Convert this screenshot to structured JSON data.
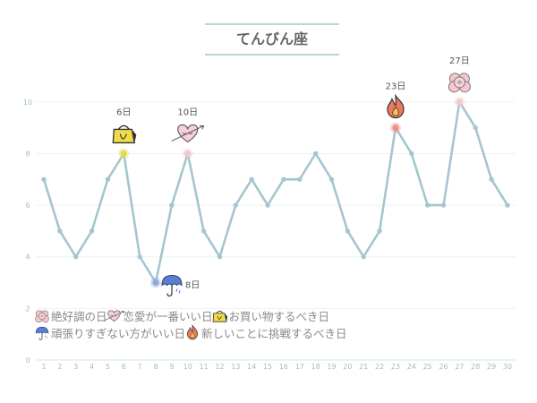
{
  "chart_data": {
    "type": "line",
    "title": "てんびん座",
    "x": [
      1,
      2,
      3,
      4,
      5,
      6,
      7,
      8,
      9,
      10,
      11,
      12,
      13,
      14,
      15,
      16,
      17,
      18,
      19,
      20,
      21,
      22,
      23,
      24,
      25,
      26,
      27,
      28,
      29,
      30
    ],
    "y": [
      7,
      5,
      4,
      5,
      7,
      8,
      4,
      3,
      6,
      8,
      5,
      4,
      6,
      7,
      6,
      7,
      7,
      8,
      7,
      5,
      4,
      5,
      9,
      8,
      6,
      6,
      10,
      9,
      7,
      6
    ],
    "ylim": [
      0,
      11
    ],
    "yticks": [
      0,
      2,
      4,
      6,
      8,
      10
    ],
    "line_color": "#a5c6cf",
    "grid": true,
    "annotations": [
      {
        "x": 6,
        "label": "6日",
        "icon": "shopping-bag-icon",
        "color": "#e8d84a"
      },
      {
        "x": 8,
        "label": "8日",
        "icon": "umbrella-icon",
        "color": "#8fa8e0"
      },
      {
        "x": 10,
        "label": "10日",
        "icon": "heart-icon",
        "color": "#f0c6d6"
      },
      {
        "x": 23,
        "label": "23日",
        "icon": "fire-icon",
        "color": "#ee8f8f"
      },
      {
        "x": 27,
        "label": "27日",
        "icon": "flower-icon",
        "color": "#f6c9cf"
      }
    ],
    "legend": {
      "placement": "bottom-left",
      "rows": [
        [
          {
            "icon": "flower-icon",
            "text": "絶好調の日"
          },
          {
            "icon": "heart-icon",
            "text": "恋愛が一番いい日"
          },
          {
            "icon": "shopping-bag-icon",
            "text": "お買い物するべき日"
          }
        ],
        [
          {
            "icon": "umbrella-icon",
            "text": "頑張りすぎない方がいい日"
          },
          {
            "icon": "fire-icon",
            "text": "新しいことに挑戦するべき日"
          }
        ]
      ]
    }
  }
}
